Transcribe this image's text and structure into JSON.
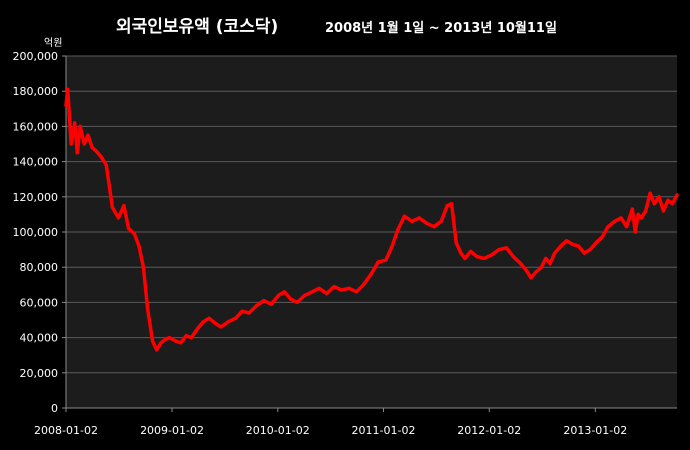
{
  "chart_data": {
    "type": "line",
    "title": "외국인보유액 (코스닥)",
    "subtitle": "2008년 1월 1일 ~ 2013년 10월11일",
    "ylabel": "억원",
    "xlabel": "",
    "ylim": [
      0,
      200000
    ],
    "yticks": [
      "200,000",
      "180,000",
      "160,000",
      "140,000",
      "120,000",
      "100,000",
      "80,000",
      "60,000",
      "40,000",
      "20,000",
      "0"
    ],
    "ytick_values": [
      200000,
      180000,
      160000,
      140000,
      120000,
      100000,
      80000,
      60000,
      40000,
      20000,
      0
    ],
    "xlim": [
      "2008-01-02",
      "2013-10-11"
    ],
    "xticks": [
      "2008-01-02",
      "2009-01-02",
      "2010-01-02",
      "2011-01-02",
      "2012-01-02",
      "2013-01-02"
    ],
    "grid": true,
    "colors": {
      "background": "#000000",
      "plot_area": "#1c1c1c",
      "gridline": "#5a5a5a",
      "series": "#ff0000",
      "text": "#ffffff"
    },
    "series": [
      {
        "x": [
          "2008-01-02",
          "2008-01-08",
          "2008-01-20",
          "2008-02-01",
          "2008-02-10",
          "2008-02-20",
          "2008-03-05",
          "2008-03-18",
          "2008-04-01",
          "2008-04-15",
          "2008-05-01",
          "2008-05-20",
          "2008-06-10",
          "2008-07-01",
          "2008-07-20",
          "2008-08-05",
          "2008-08-25",
          "2008-09-10",
          "2008-09-25",
          "2008-10-10",
          "2008-10-27",
          "2008-11-10",
          "2008-11-25",
          "2008-12-10",
          "2008-12-24",
          "2009-01-15",
          "2009-02-01",
          "2009-02-20",
          "2009-03-10",
          "2009-03-31",
          "2009-04-20",
          "2009-05-10",
          "2009-06-01",
          "2009-06-20",
          "2009-07-15",
          "2009-08-10",
          "2009-09-01",
          "2009-09-25",
          "2009-10-20",
          "2009-11-15",
          "2009-12-10",
          "2010-01-05",
          "2010-01-25",
          "2010-02-15",
          "2010-03-10",
          "2010-04-05",
          "2010-05-01",
          "2010-05-25",
          "2010-06-20",
          "2010-07-15",
          "2010-08-10",
          "2010-09-05",
          "2010-10-01",
          "2010-10-25",
          "2010-11-20",
          "2010-12-15",
          "2011-01-10",
          "2011-02-01",
          "2011-02-20",
          "2011-03-15",
          "2011-04-10",
          "2011-05-05",
          "2011-05-30",
          "2011-06-25",
          "2011-07-20",
          "2011-08-10",
          "2011-08-25",
          "2011-09-10",
          "2011-09-26",
          "2011-10-10",
          "2011-10-30",
          "2011-11-20",
          "2011-12-15",
          "2012-01-10",
          "2012-02-05",
          "2012-03-01",
          "2012-03-25",
          "2012-04-20",
          "2012-05-10",
          "2012-05-25",
          "2012-06-10",
          "2012-06-30",
          "2012-07-15",
          "2012-07-30",
          "2012-08-15",
          "2012-09-05",
          "2012-09-25",
          "2012-10-15",
          "2012-11-05",
          "2012-11-25",
          "2012-12-15",
          "2013-01-05",
          "2013-01-25",
          "2013-02-15",
          "2013-03-10",
          "2013-04-01",
          "2013-04-20",
          "2013-05-10",
          "2013-05-20",
          "2013-05-30",
          "2013-06-10",
          "2013-06-25",
          "2013-07-10",
          "2013-07-25",
          "2013-08-10",
          "2013-08-25",
          "2013-09-10",
          "2013-09-25",
          "2013-10-11"
        ],
        "values": [
          172000,
          181000,
          150000,
          162000,
          145000,
          160000,
          150000,
          155000,
          148000,
          146000,
          143000,
          138000,
          114000,
          108000,
          115000,
          102000,
          99000,
          92000,
          80000,
          56000,
          38000,
          33000,
          37000,
          39000,
          40000,
          38000,
          37000,
          41000,
          40000,
          45000,
          49000,
          51000,
          48000,
          46000,
          49000,
          51000,
          55000,
          54000,
          58000,
          61000,
          59000,
          64000,
          66000,
          62000,
          60000,
          64000,
          66000,
          68000,
          65000,
          69000,
          67000,
          68000,
          66000,
          70000,
          76000,
          83000,
          84000,
          92000,
          101000,
          109000,
          106000,
          108000,
          105000,
          103000,
          106000,
          115000,
          116000,
          94000,
          88000,
          85000,
          89000,
          86000,
          85000,
          87000,
          90000,
          91000,
          86000,
          82000,
          78000,
          74000,
          77000,
          80000,
          85000,
          82000,
          88000,
          92000,
          95000,
          93000,
          92000,
          88000,
          90000,
          94000,
          97000,
          103000,
          106000,
          108000,
          103000,
          113000,
          100000,
          110000,
          108000,
          112000,
          122000,
          116000,
          120000,
          112000,
          118000,
          116000,
          121000
        ]
      }
    ]
  }
}
